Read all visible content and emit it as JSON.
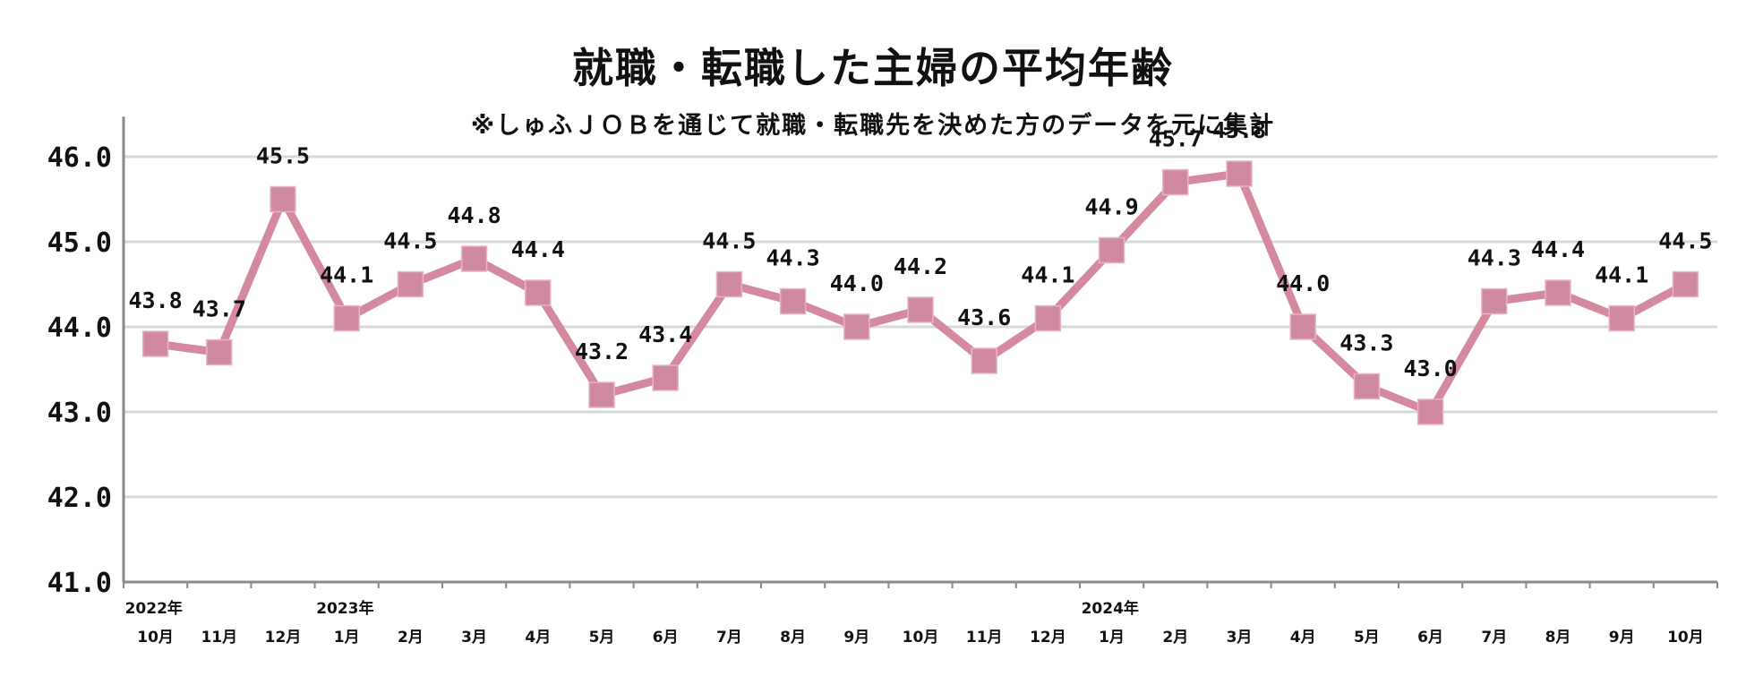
{
  "chart_data": {
    "type": "line",
    "title": "就職・転職した主婦の平均年齢",
    "subtitle": "※しゅふＪＯＢを通じて就職・転職先を決めた方のデータを元に集計",
    "categories": [
      "10月",
      "11月",
      "12月",
      "1月",
      "2月",
      "3月",
      "4月",
      "5月",
      "6月",
      "7月",
      "8月",
      "9月",
      "10月",
      "11月",
      "12月",
      "1月",
      "2月",
      "3月",
      "4月",
      "5月",
      "6月",
      "7月",
      "8月",
      "9月",
      "10月"
    ],
    "year_labels": [
      {
        "index": 0,
        "label": "2022年"
      },
      {
        "index": 3,
        "label": "2023年"
      },
      {
        "index": 15,
        "label": "2024年"
      }
    ],
    "series": [
      {
        "name": "平均年齢",
        "values": [
          43.8,
          43.7,
          45.5,
          44.1,
          44.5,
          44.8,
          44.4,
          43.2,
          43.4,
          44.5,
          44.3,
          44.0,
          44.2,
          43.6,
          44.1,
          44.9,
          45.7,
          45.8,
          44.0,
          43.3,
          43.0,
          44.3,
          44.4,
          44.1,
          44.5
        ]
      }
    ],
    "data_labels": [
      "43.8",
      "43.7",
      "45.5",
      "44.1",
      "44.5",
      "44.8",
      "44.4",
      "43.2",
      "43.4",
      "44.5",
      "44.3",
      "44.0",
      "44.2",
      "43.6",
      "44.1",
      "44.9",
      "45.7",
      "45.8",
      "44.0",
      "43.3",
      "43.0",
      "44.3",
      "44.4",
      "44.1",
      "44.5"
    ],
    "y_ticks": [
      "41.0",
      "42.0",
      "43.0",
      "44.0",
      "45.0",
      "46.0"
    ],
    "ylim": [
      41,
      46.5
    ],
    "xlabel": "",
    "ylabel": "",
    "grid": true,
    "colors": {
      "line": "#d4899f",
      "marker": "#cf8aa0",
      "grid": "#d8d8d8",
      "axis": "#8a8a8a"
    }
  }
}
